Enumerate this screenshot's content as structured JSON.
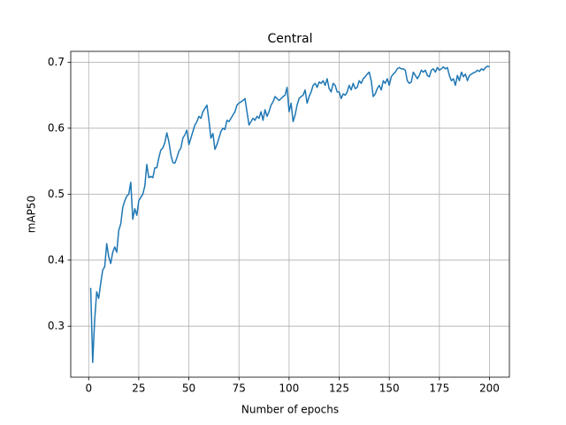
{
  "chart_data": {
    "type": "line",
    "title": "Central",
    "xlabel": "Number of epochs",
    "ylabel": "mAP50",
    "xlim": [
      -8.95,
      209.95
    ],
    "ylim": [
      0.2226,
      0.7165
    ],
    "xticks": [
      0,
      25,
      50,
      75,
      100,
      125,
      150,
      175,
      200
    ],
    "yticks": [
      0.3,
      0.4,
      0.5,
      0.6,
      0.7
    ],
    "grid": true,
    "series": [
      {
        "color": "#1f77b4",
        "x": [
          1,
          2,
          3,
          4,
          5,
          6,
          7,
          8,
          9,
          10,
          11,
          12,
          13,
          14,
          15,
          16,
          17,
          18,
          19,
          20,
          21,
          22,
          23,
          24,
          25,
          26,
          27,
          28,
          29,
          30,
          31,
          32,
          33,
          34,
          35,
          36,
          37,
          38,
          39,
          40,
          41,
          42,
          43,
          44,
          45,
          46,
          47,
          48,
          49,
          50,
          51,
          52,
          53,
          54,
          55,
          56,
          57,
          58,
          59,
          60,
          61,
          62,
          63,
          64,
          65,
          66,
          67,
          68,
          69,
          70,
          71,
          72,
          73,
          74,
          75,
          76,
          77,
          78,
          79,
          80,
          81,
          82,
          83,
          84,
          85,
          86,
          87,
          88,
          89,
          90,
          91,
          92,
          93,
          94,
          95,
          96,
          97,
          98,
          99,
          100,
          101,
          102,
          103,
          104,
          105,
          106,
          107,
          108,
          109,
          110,
          111,
          112,
          113,
          114,
          115,
          116,
          117,
          118,
          119,
          120,
          121,
          122,
          123,
          124,
          125,
          126,
          127,
          128,
          129,
          130,
          131,
          132,
          133,
          134,
          135,
          136,
          137,
          138,
          139,
          140,
          141,
          142,
          143,
          144,
          145,
          146,
          147,
          148,
          149,
          150,
          151,
          152,
          153,
          154,
          155,
          156,
          157,
          158,
          159,
          160,
          161,
          162,
          163,
          164,
          165,
          166,
          167,
          168,
          169,
          170,
          171,
          172,
          173,
          174,
          175,
          176,
          177,
          178,
          179,
          180,
          181,
          182,
          183,
          184,
          185,
          186,
          187,
          188,
          189,
          190,
          191,
          192,
          193,
          194,
          195,
          196,
          197,
          198,
          199,
          200
        ],
        "values": [
          0.358,
          0.245,
          0.31,
          0.352,
          0.342,
          0.365,
          0.385,
          0.39,
          0.425,
          0.405,
          0.395,
          0.412,
          0.42,
          0.412,
          0.445,
          0.455,
          0.48,
          0.49,
          0.497,
          0.5,
          0.518,
          0.462,
          0.478,
          0.468,
          0.49,
          0.495,
          0.5,
          0.512,
          0.545,
          0.525,
          0.527,
          0.525,
          0.54,
          0.54,
          0.555,
          0.567,
          0.57,
          0.578,
          0.593,
          0.58,
          0.56,
          0.548,
          0.547,
          0.555,
          0.565,
          0.57,
          0.585,
          0.59,
          0.597,
          0.575,
          0.585,
          0.595,
          0.605,
          0.61,
          0.618,
          0.615,
          0.625,
          0.63,
          0.635,
          0.612,
          0.585,
          0.592,
          0.568,
          0.575,
          0.585,
          0.595,
          0.6,
          0.598,
          0.612,
          0.61,
          0.615,
          0.62,
          0.625,
          0.635,
          0.638,
          0.64,
          0.642,
          0.645,
          0.625,
          0.605,
          0.61,
          0.615,
          0.612,
          0.618,
          0.615,
          0.625,
          0.612,
          0.628,
          0.618,
          0.625,
          0.635,
          0.64,
          0.648,
          0.645,
          0.642,
          0.645,
          0.648,
          0.65,
          0.662,
          0.625,
          0.638,
          0.61,
          0.62,
          0.635,
          0.645,
          0.648,
          0.65,
          0.658,
          0.638,
          0.648,
          0.655,
          0.665,
          0.668,
          0.662,
          0.67,
          0.668,
          0.672,
          0.665,
          0.675,
          0.66,
          0.655,
          0.668,
          0.665,
          0.655,
          0.655,
          0.645,
          0.652,
          0.65,
          0.655,
          0.665,
          0.658,
          0.668,
          0.66,
          0.662,
          0.672,
          0.668,
          0.675,
          0.678,
          0.682,
          0.685,
          0.672,
          0.648,
          0.652,
          0.66,
          0.665,
          0.658,
          0.672,
          0.668,
          0.675,
          0.665,
          0.678,
          0.682,
          0.685,
          0.69,
          0.692,
          0.69,
          0.69,
          0.688,
          0.672,
          0.668,
          0.67,
          0.685,
          0.68,
          0.675,
          0.68,
          0.688,
          0.685,
          0.688,
          0.68,
          0.678,
          0.688,
          0.69,
          0.685,
          0.692,
          0.688,
          0.69,
          0.693,
          0.69,
          0.692,
          0.68,
          0.672,
          0.675,
          0.665,
          0.68,
          0.672,
          0.685,
          0.678,
          0.682,
          0.672,
          0.68,
          0.682,
          0.684,
          0.685,
          0.688,
          0.686,
          0.69,
          0.688,
          0.692,
          0.694,
          0.693
        ]
      }
    ]
  }
}
